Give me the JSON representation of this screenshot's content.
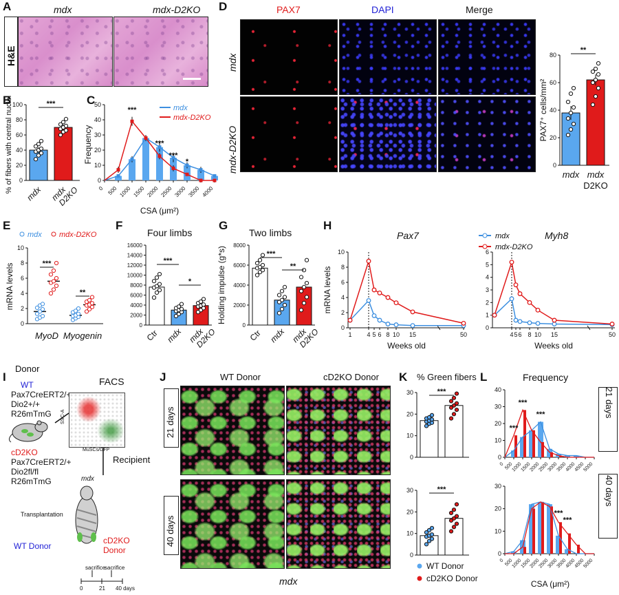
{
  "panelA": {
    "letter": "A",
    "row_label": "H&E",
    "col_labels": [
      "mdx",
      "mdx-D2KO"
    ]
  },
  "panelB": {
    "letter": "B",
    "ylabel": "% of fibers with central nuclei",
    "sig": "***"
  },
  "panelC": {
    "letter": "C",
    "legend": [
      "mdx",
      "mdx-D2KO"
    ],
    "sig": [
      "***",
      "***",
      "***",
      "*"
    ]
  },
  "panelD": {
    "letter": "D",
    "col_labels": [
      "PAX7",
      "DAPI",
      "Merge"
    ],
    "row_labels": [
      "mdx",
      "mdx-D2KO"
    ],
    "ylabel": "PAX7⁺ cells/mm²",
    "sig": "**"
  },
  "panelE": {
    "letter": "E",
    "legend": [
      "mdx",
      "mdx-D2KO"
    ],
    "sig": [
      "***",
      "**"
    ]
  },
  "panelF": {
    "letter": "F",
    "title": "Four limbs",
    "sig": [
      "***",
      "*"
    ]
  },
  "panelG": {
    "letter": "G",
    "title": "Two limbs",
    "sig": [
      "***",
      "**"
    ]
  },
  "panelH": {
    "letter": "H",
    "legend": [
      "mdx",
      "mdx-D2KO"
    ],
    "subtitles": [
      "Pax7",
      "Myh8"
    ]
  },
  "panelI": {
    "letter": "I",
    "donor_title": "Donor",
    "facs_title": "FACS",
    "wt_label": "WT",
    "wt_genotype": [
      "Pax7CreERT2/+",
      "Dio2+/+",
      "R26mTmG"
    ],
    "cd2ko_label": "cD2KO",
    "cd2ko_genotype": [
      "Pax7CreERT2/+",
      "Dio2fl/fl",
      "R26mTmG"
    ],
    "facs_y": "SSC-A",
    "facs_x": "MuSCs/GFP",
    "recipient": "Recipient",
    "recipient_mouse": "mdx",
    "transplantation": "Transplantation",
    "wt_donor": "WT Donor",
    "cd2ko_donor": [
      "cD2KO",
      "Donor"
    ],
    "timeline_labels": [
      "sacrifice",
      "sacrifice"
    ],
    "timeline_ticks": [
      "0",
      "21",
      "40 days"
    ]
  },
  "panelJ": {
    "letter": "J",
    "col_labels": [
      "WT Donor",
      "cD2KO Donor"
    ],
    "row_labels": [
      "21 days",
      "40 days"
    ],
    "bottom_label": "mdx"
  },
  "panelK": {
    "letter": "K",
    "title": "% Green fibers",
    "legend": [
      "WT Donor",
      "cD2KO Donor"
    ],
    "sig": [
      "***",
      "***"
    ]
  },
  "panelL": {
    "letter": "L",
    "title": "Frequency",
    "xlabel": "CSA (μm²)",
    "side_labels": [
      "21 days",
      "40 days"
    ],
    "sig_top": [
      "***",
      "***",
      "***"
    ],
    "sig_bottom": [
      "***",
      "***"
    ]
  },
  "colors": {
    "blue": "#3d8fe0",
    "red": "#e01b1b",
    "light_blue": "#5aa7ef"
  },
  "chart_data": [
    {
      "id": "B",
      "type": "bar",
      "categories": [
        "mdx",
        "mdx D2KO"
      ],
      "values": [
        40,
        70
      ],
      "errors": [
        4,
        4
      ],
      "ylim": [
        0,
        100
      ],
      "yticks": [
        "0",
        "20",
        "40",
        "60",
        "80",
        "100"
      ],
      "points": [
        [
          28,
          33,
          36,
          38,
          40,
          42,
          45,
          48,
          52
        ],
        [
          60,
          64,
          66,
          68,
          70,
          72,
          74,
          77,
          81
        ]
      ]
    },
    {
      "id": "C",
      "type": "bar+line",
      "xlabel": "CSA (μm²)",
      "ylabel": "Frequency",
      "x": [
        500,
        1000,
        1500,
        2000,
        2500,
        3000,
        3500,
        4000
      ],
      "xticks": [
        "0",
        "500",
        "1000",
        "1500",
        "2000",
        "2500",
        "3000",
        "3500",
        "4000"
      ],
      "ylim": [
        0,
        50
      ],
      "yticks": [
        "0",
        "10",
        "20",
        "30",
        "40",
        "50"
      ],
      "series": [
        {
          "name": "mdx",
          "values": [
            3,
            14,
            28,
            22,
            15,
            10,
            7,
            3
          ],
          "errors": [
            1,
            2,
            2,
            3,
            3,
            2,
            2,
            1
          ]
        },
        {
          "name": "mdx-D2KO",
          "values": [
            7,
            39,
            28,
            16,
            8,
            4,
            0,
            0
          ],
          "errors": [
            2,
            3,
            2,
            2,
            2,
            1,
            0,
            0
          ]
        }
      ]
    },
    {
      "id": "D",
      "type": "bar",
      "categories": [
        "mdx",
        "mdx D2KO"
      ],
      "values": [
        38,
        62
      ],
      "errors": [
        5,
        4
      ],
      "ylim": [
        0,
        80
      ],
      "yticks": [
        "0",
        "20",
        "40",
        "60",
        "80"
      ],
      "points": [
        [
          22,
          26,
          30,
          34,
          38,
          42,
          46,
          52,
          56
        ],
        [
          44,
          50,
          56,
          60,
          62,
          66,
          68,
          70,
          74
        ]
      ]
    },
    {
      "id": "E",
      "type": "scatter-bar",
      "ylabel": "mRNA levels",
      "categories": [
        "MyoD",
        "Myogenin"
      ],
      "series": [
        {
          "name": "mdx",
          "values": [
            1.6,
            1.1
          ],
          "points": [
            [
              0.6,
              0.8,
              1.0,
              1.3,
              1.6,
              1.9,
              2.1,
              2.4,
              2.6
            ],
            [
              0.5,
              0.7,
              0.9,
              1.0,
              1.1,
              1.3,
              1.5,
              1.7,
              2.0
            ]
          ]
        },
        {
          "name": "mdx-D2KO",
          "values": [
            5.6,
            2.5
          ],
          "points": [
            [
              4.0,
              4.5,
              5.0,
              5.4,
              5.6,
              6.0,
              6.5,
              7.0,
              8.0
            ],
            [
              1.6,
              1.9,
              2.2,
              2.4,
              2.5,
              2.7,
              2.9,
              3.1,
              3.5
            ]
          ]
        }
      ],
      "ylim": [
        0,
        10
      ],
      "yticks": [
        "0",
        "2",
        "4",
        "6",
        "8",
        "10"
      ]
    },
    {
      "id": "F",
      "type": "bar",
      "categories": [
        "Ctr",
        "mdx",
        "mdx D2KO"
      ],
      "values": [
        7600,
        3000,
        3900
      ],
      "ylim": [
        0,
        16000
      ],
      "yticks": [
        "0",
        "2000",
        "4000",
        "6000",
        "8000",
        "10000",
        "12000",
        "14000",
        "16000"
      ],
      "points": [
        [
          5500,
          6500,
          7000,
          7500,
          7800,
          8200,
          8800,
          9500,
          10200
        ],
        [
          1800,
          2200,
          2600,
          2800,
          3000,
          3200,
          3400,
          3700,
          4200
        ],
        [
          2600,
          3000,
          3400,
          3700,
          3900,
          4100,
          4400,
          4700,
          5200
        ]
      ]
    },
    {
      "id": "G",
      "type": "bar",
      "ylabel": "Holding impulse (g*s)",
      "categories": [
        "Ctr",
        "mdx",
        "mdx D2KO"
      ],
      "values": [
        5700,
        2500,
        3800
      ],
      "ylim": [
        0,
        8000
      ],
      "yticks": [
        "0",
        "2000",
        "4000",
        "6000",
        "8000"
      ],
      "points": [
        [
          5000,
          5300,
          5500,
          5700,
          5800,
          6000,
          6200,
          6500,
          7000
        ],
        [
          1200,
          1600,
          2000,
          2300,
          2500,
          2800,
          3000,
          3400,
          3800
        ],
        [
          1500,
          2200,
          2800,
          3400,
          3800,
          4200,
          4800,
          5500,
          6500
        ]
      ]
    },
    {
      "id": "H-Pax7",
      "type": "line",
      "title": "Pax7",
      "xlabel": "Weeks old",
      "ylabel": "mRNA levels",
      "x": [
        1,
        4,
        5,
        6,
        8,
        10,
        15,
        50
      ],
      "xticks": [
        "1",
        "4",
        "5",
        "6",
        "8",
        "10",
        "15",
        "50"
      ],
      "ylim": [
        0,
        10
      ],
      "yticks": [
        "0",
        "2",
        "4",
        "6",
        "8",
        "10"
      ],
      "series": [
        {
          "name": "mdx",
          "values": [
            1,
            3.6,
            1.6,
            1.0,
            0.5,
            0.4,
            0.3,
            0.3
          ]
        },
        {
          "name": "mdx-D2KO",
          "values": [
            1,
            8.8,
            5.0,
            4.6,
            4.0,
            3.3,
            2.1,
            0.6
          ]
        }
      ]
    },
    {
      "id": "H-Myh8",
      "type": "line",
      "title": "Myh8",
      "xlabel": "Weeks old",
      "x": [
        1,
        4,
        5,
        6,
        8,
        10,
        15,
        50
      ],
      "xticks": [
        "4",
        "5",
        "6",
        "8",
        "10",
        "15",
        "50"
      ],
      "ylim": [
        0,
        6
      ],
      "yticks": [
        "0",
        "1",
        "2",
        "3",
        "4",
        "5",
        "6"
      ],
      "series": [
        {
          "name": "mdx",
          "values": [
            1,
            2.3,
            0.6,
            0.5,
            0.4,
            0.35,
            0.3,
            0.25
          ]
        },
        {
          "name": "mdx-D2KO",
          "values": [
            1,
            5.2,
            3.4,
            2.7,
            2.0,
            1.4,
            0.6,
            0.3
          ]
        }
      ]
    },
    {
      "id": "K-21",
      "type": "bar",
      "categories": [
        "WT Donor",
        "cD2KO Donor"
      ],
      "values": [
        17,
        24
      ],
      "ylim": [
        0,
        30
      ],
      "yticks": [
        "0",
        "10",
        "20",
        "30"
      ],
      "points": [
        [
          14.5,
          15.5,
          16,
          16.5,
          17,
          17.5,
          18,
          18.5,
          19.5
        ],
        [
          18,
          20,
          22,
          23,
          24,
          25,
          26,
          27.5,
          29.5
        ]
      ]
    },
    {
      "id": "K-40",
      "type": "bar",
      "categories": [
        "WT Donor",
        "cD2KO Donor"
      ],
      "values": [
        9,
        17
      ],
      "ylim": [
        0,
        30
      ],
      "yticks": [
        "0",
        "10",
        "20",
        "30"
      ],
      "points": [
        [
          5,
          6.5,
          7.5,
          8.5,
          9,
          9.5,
          10.5,
          11.5,
          12.5
        ],
        [
          11,
          13,
          14.5,
          16,
          17,
          18,
          19.5,
          21,
          23.5
        ]
      ]
    },
    {
      "id": "L-21",
      "type": "bar+line",
      "x": [
        500,
        1000,
        1500,
        2000,
        2500,
        3000,
        3500,
        4000,
        4500,
        5000
      ],
      "xticks": [
        "0",
        "500",
        "1000",
        "1500",
        "2000",
        "2500",
        "3000",
        "3500",
        "4000",
        "4500",
        "5000"
      ],
      "ylim": [
        0,
        40
      ],
      "yticks": [
        "0",
        "10",
        "20",
        "30",
        "40"
      ],
      "series": [
        {
          "name": "WT Donor",
          "values": [
            4,
            12,
            16,
            21,
            5,
            2,
            1,
            1,
            0,
            0
          ]
        },
        {
          "name": "cD2KO Donor",
          "values": [
            13,
            28,
            16,
            9,
            3,
            1,
            0,
            0,
            0,
            0
          ]
        }
      ]
    },
    {
      "id": "L-40",
      "type": "bar+line",
      "x": [
        500,
        1000,
        1500,
        2000,
        2500,
        3000,
        3500,
        4000,
        4500,
        5000
      ],
      "xticks": [
        "0",
        "500",
        "1000",
        "1500",
        "2000",
        "2500",
        "3000",
        "3500",
        "4000",
        "4500",
        "5000"
      ],
      "ylim": [
        0,
        30
      ],
      "yticks": [
        "0",
        "10",
        "20",
        "30"
      ],
      "series": [
        {
          "name": "WT Donor",
          "values": [
            1,
            6,
            22,
            23,
            22,
            8,
            2,
            0,
            0,
            0
          ]
        },
        {
          "name": "cD2KO Donor",
          "values": [
            0,
            3,
            20,
            23,
            21,
            14,
            9,
            4,
            0,
            0
          ]
        }
      ]
    }
  ]
}
